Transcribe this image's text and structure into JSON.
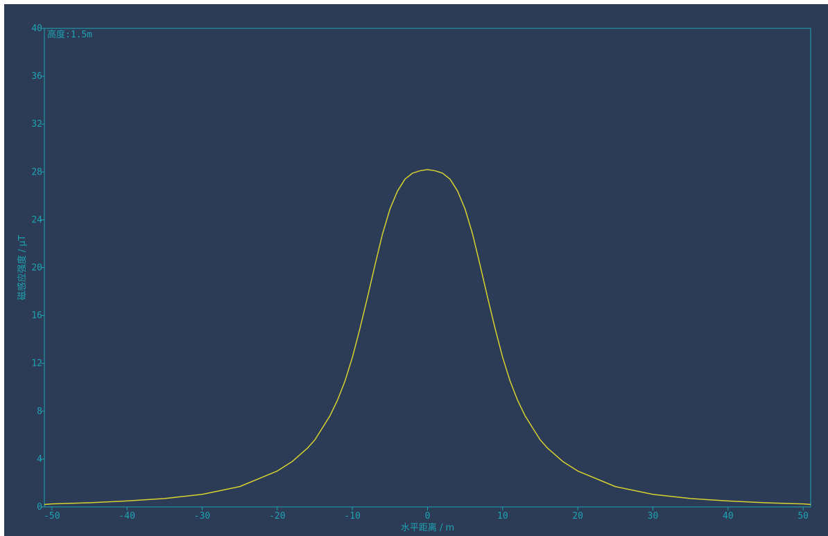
{
  "colors": {
    "background": "#2c3c56",
    "axis": "#1fa2b2",
    "text": "#1fa2b2",
    "curve": "#d8d230"
  },
  "chart_data": {
    "type": "line",
    "annotation": "高度:1.5m",
    "xlabel": "水平距离 / m",
    "ylabel": "磁感应强度 / μT",
    "xlim": [
      -51,
      51
    ],
    "ylim": [
      0,
      40
    ],
    "xticks": [
      -50,
      -40,
      -30,
      -20,
      -10,
      0,
      10,
      20,
      30,
      40,
      50
    ],
    "yticks": [
      0,
      4,
      8,
      12,
      16,
      20,
      24,
      28,
      32,
      36,
      40
    ],
    "grid": false,
    "series": [
      {
        "x": [
          -51,
          -50,
          -45,
          -40,
          -35,
          -30,
          -25,
          -20,
          -18,
          -16,
          -15,
          -14,
          -13,
          -12,
          -11,
          -10,
          -9,
          -8,
          -7,
          -6,
          -5,
          -4,
          -3,
          -2,
          -1,
          0,
          1,
          2,
          3,
          4,
          5,
          6,
          7,
          8,
          9,
          10,
          11,
          12,
          13,
          14,
          15,
          16,
          18,
          20,
          25,
          30,
          35,
          40,
          45,
          50,
          51
        ],
        "y": [
          0.2,
          0.25,
          0.35,
          0.5,
          0.7,
          1.05,
          1.7,
          3.0,
          3.8,
          4.9,
          5.6,
          6.6,
          7.6,
          8.9,
          10.5,
          12.5,
          14.9,
          17.5,
          20.2,
          22.8,
          24.9,
          26.4,
          27.4,
          27.9,
          28.1,
          28.2,
          28.1,
          27.9,
          27.4,
          26.4,
          24.9,
          22.8,
          20.2,
          17.5,
          14.9,
          12.5,
          10.5,
          8.9,
          7.6,
          6.6,
          5.6,
          4.9,
          3.8,
          3.0,
          1.7,
          1.05,
          0.7,
          0.5,
          0.35,
          0.25,
          0.2
        ]
      }
    ]
  }
}
